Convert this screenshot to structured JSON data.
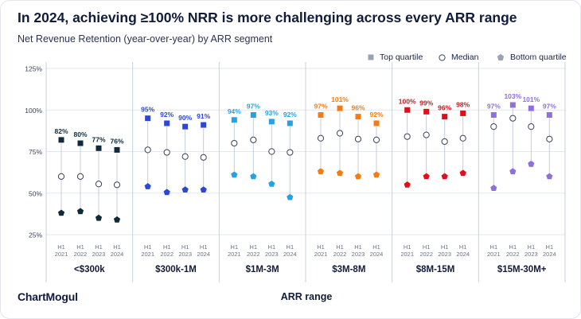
{
  "title": "In 2024, achieving ≥100% NRR is more challenging across every ARR range",
  "subtitle": "Net Revenue Retention (year-over-year) by ARR segment",
  "brand": "ChartMogul",
  "chart_data": {
    "type": "scatter",
    "xlabel": "ARR range",
    "ylim": [
      25,
      125
    ],
    "yticks": [
      "25%",
      "50%",
      "75%",
      "100%",
      "125%"
    ],
    "grid": true,
    "legend": "top-right",
    "legend_items": [
      {
        "name": "Top quartile",
        "marker": "square",
        "color": "#9aa3b5"
      },
      {
        "name": "Median",
        "marker": "circle-open",
        "color": "#3b4257"
      },
      {
        "name": "Bottom quartile",
        "marker": "pentagon",
        "color": "#9aa3b5"
      }
    ],
    "period_labels": [
      [
        "H1",
        "2021"
      ],
      [
        "H1",
        "2022"
      ],
      [
        "H1",
        "2023"
      ],
      [
        "H1",
        "2024"
      ]
    ],
    "segments": [
      {
        "name": "<$300k",
        "color": "#0f2a3a",
        "top": [
          82,
          80,
          77,
          76
        ],
        "median": [
          60,
          60,
          55.5,
          55
        ],
        "bottom": [
          38,
          39,
          35,
          34
        ],
        "top_labels": [
          "82%",
          "80%",
          "77%",
          "76%"
        ]
      },
      {
        "name": "$300k-1M",
        "color": "#2c47d6",
        "top": [
          95,
          92,
          90,
          91
        ],
        "median": [
          76,
          74.5,
          72,
          71.5
        ],
        "bottom": [
          54,
          50.5,
          52,
          52
        ],
        "top_labels": [
          "95%",
          "92%",
          "90%",
          "91%"
        ]
      },
      {
        "name": "$1M-3M",
        "color": "#23a3e6",
        "top": [
          94,
          97,
          93,
          92
        ],
        "median": [
          80,
          82,
          75,
          74.5
        ],
        "bottom": [
          61,
          60,
          55.5,
          47.5
        ],
        "top_labels": [
          "94%",
          "97%",
          "93%",
          "92%"
        ]
      },
      {
        "name": "$3M-8M",
        "color": "#f57c14",
        "top": [
          97,
          101,
          96,
          92
        ],
        "median": [
          83,
          86,
          82.5,
          82
        ],
        "bottom": [
          63,
          62,
          60,
          61
        ],
        "top_labels": [
          "97%",
          "101%",
          "96%",
          "92%"
        ]
      },
      {
        "name": "$8M-15M",
        "color": "#e30d1b",
        "top": [
          100,
          99,
          96,
          98
        ],
        "median": [
          84,
          85,
          81,
          83
        ],
        "bottom": [
          55,
          60,
          60,
          62
        ],
        "top_labels": [
          "100%",
          "99%",
          "96%",
          "98%"
        ]
      },
      {
        "name": "$15M-30M+",
        "color": "#8f6fe0",
        "top": [
          97,
          103,
          101,
          97
        ],
        "median": [
          90,
          95,
          90,
          82.5
        ],
        "bottom": [
          53,
          63,
          67.5,
          60
        ],
        "top_labels": [
          "97%",
          "103%",
          "101%",
          "97%"
        ]
      }
    ]
  }
}
